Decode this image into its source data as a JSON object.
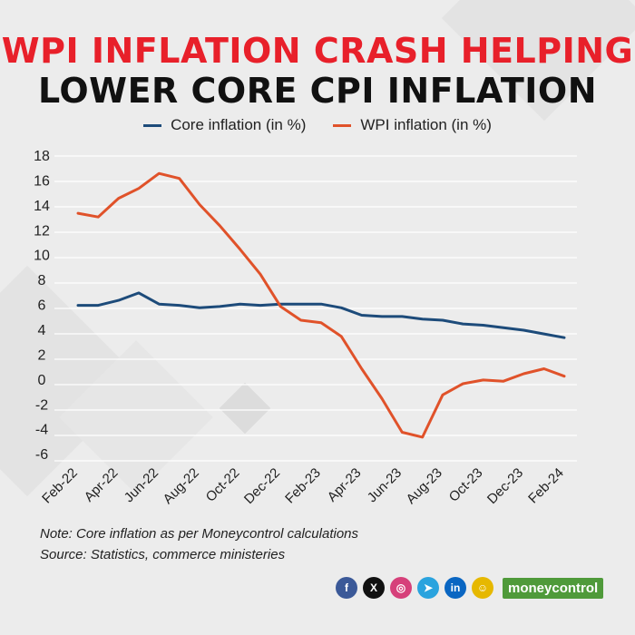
{
  "title_line1": "WPI INFLATION CRASH HELPING",
  "title_line2": "LOWER CORE CPI INFLATION",
  "chart_data": {
    "type": "line",
    "x": [
      "Feb-22",
      "Mar-22",
      "Apr-22",
      "May-22",
      "Jun-22",
      "Jul-22",
      "Aug-22",
      "Sep-22",
      "Oct-22",
      "Nov-22",
      "Dec-22",
      "Jan-23",
      "Feb-23",
      "Mar-23",
      "Apr-23",
      "May-23",
      "Jun-23",
      "Jul-23",
      "Aug-23",
      "Sep-23",
      "Oct-23",
      "Nov-23",
      "Dec-23",
      "Jan-24",
      "Feb-24"
    ],
    "tick_labels": [
      "Feb-22",
      "Apr-22",
      "Jun-22",
      "Aug-22",
      "Oct-22",
      "Dec-22",
      "Feb-23",
      "Apr-23",
      "Jun-23",
      "Aug-23",
      "Oct-23",
      "Dec-23",
      "Feb-24"
    ],
    "series": [
      {
        "name": "Core inflation (in %)",
        "color": "#1d4b7a",
        "values": [
          6.0,
          6.0,
          6.4,
          7.0,
          6.1,
          6.0,
          5.8,
          5.9,
          6.1,
          6.0,
          6.1,
          6.1,
          6.1,
          5.8,
          5.2,
          5.1,
          5.1,
          4.9,
          4.8,
          4.5,
          4.4,
          4.2,
          4.0,
          3.7,
          3.4
        ]
      },
      {
        "name": "WPI inflation (in %)",
        "color": "#e0522a",
        "values": [
          13.4,
          13.1,
          14.6,
          15.4,
          16.6,
          16.2,
          14.1,
          12.4,
          10.5,
          8.5,
          5.9,
          4.8,
          4.6,
          3.5,
          0.9,
          -1.5,
          -4.2,
          -4.6,
          -1.2,
          -0.3,
          0.0,
          -0.1,
          0.5,
          0.9,
          0.3
        ]
      }
    ],
    "yticks": [
      18,
      16,
      14,
      12,
      10,
      8,
      6,
      4,
      2,
      0,
      -2,
      -4,
      -6
    ],
    "ylim": [
      -6.5,
      18
    ],
    "grid": true,
    "legend_position": "top-center"
  },
  "note": "Note: Core inflation as per Moneycontrol calculations",
  "source": "Source: Statistics, commerce ministeries",
  "footer": {
    "icons": [
      {
        "name": "facebook-icon",
        "glyph": "f",
        "color": "#3b5998"
      },
      {
        "name": "x-icon",
        "glyph": "X",
        "color": "#111111"
      },
      {
        "name": "instagram-icon",
        "glyph": "◎",
        "color": "#d6407a"
      },
      {
        "name": "telegram-icon",
        "glyph": "➤",
        "color": "#2aa3de"
      },
      {
        "name": "linkedin-icon",
        "glyph": "in",
        "color": "#0a66c2"
      },
      {
        "name": "snapchat-icon",
        "glyph": "☺",
        "color": "#e6b800"
      }
    ],
    "brand": "moneycontrol"
  }
}
